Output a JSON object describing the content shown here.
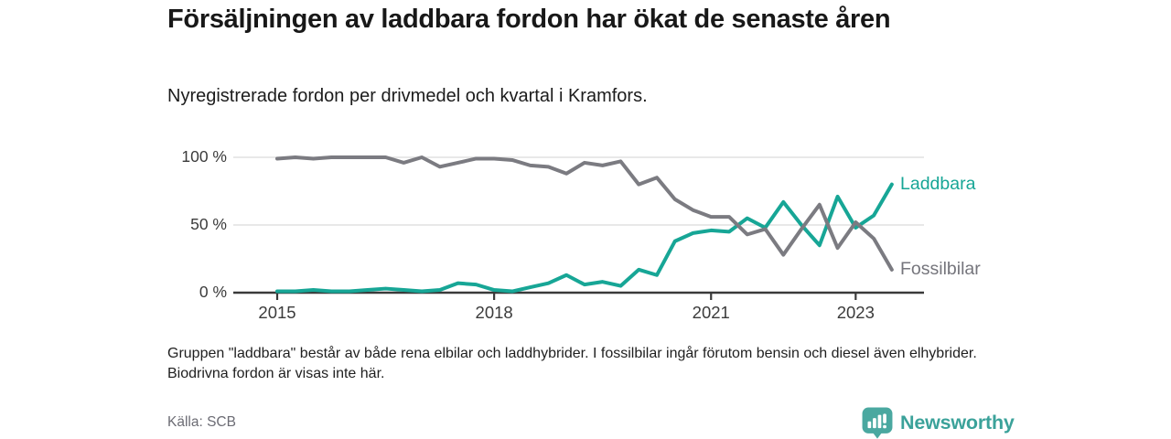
{
  "header": {
    "title": "Försäljningen av laddbara fordon har ökat de senaste åren",
    "subtitle": "Nyregistrerade fordon per drivmedel och kvartal i Kramfors."
  },
  "chart_data": {
    "type": "line",
    "title": "Försäljningen av laddbara fordon har ökat de senaste åren",
    "subtitle": "Nyregistrerade fordon per drivmedel och kvartal i Kramfors.",
    "unit": "%",
    "grid": "horizontal",
    "legend_position": "end-of-line labels at right",
    "ylim": [
      0,
      105
    ],
    "x": [
      "2015 Q1",
      "2015 Q2",
      "2015 Q3",
      "2015 Q4",
      "2016 Q1",
      "2016 Q2",
      "2016 Q3",
      "2016 Q4",
      "2017 Q1",
      "2017 Q2",
      "2017 Q3",
      "2017 Q4",
      "2018 Q1",
      "2018 Q2",
      "2018 Q3",
      "2018 Q4",
      "2019 Q1",
      "2019 Q2",
      "2019 Q3",
      "2019 Q4",
      "2020 Q1",
      "2020 Q2",
      "2020 Q3",
      "2020 Q4",
      "2021 Q1",
      "2021 Q2",
      "2021 Q3",
      "2021 Q4",
      "2022 Q1",
      "2022 Q2",
      "2022 Q3",
      "2022 Q4",
      "2023 Q1",
      "2023 Q2",
      "2023 Q3"
    ],
    "series": [
      {
        "name": "Laddbara",
        "color": "#17a696",
        "label_color": "#17a696",
        "values": [
          1,
          1,
          2,
          1,
          1,
          2,
          3,
          2,
          1,
          2,
          7,
          6,
          2,
          1,
          4,
          7,
          13,
          6,
          8,
          5,
          17,
          13,
          38,
          44,
          46,
          45,
          55,
          48,
          67,
          50,
          35,
          71,
          48,
          57,
          80
        ]
      },
      {
        "name": "Fossilbilar",
        "color": "#7b7b81",
        "label_color": "#75757c",
        "values": [
          99,
          100,
          99,
          100,
          100,
          100,
          100,
          96,
          100,
          93,
          96,
          99,
          99,
          98,
          94,
          93,
          88,
          96,
          94,
          97,
          80,
          85,
          69,
          61,
          56,
          56,
          43,
          47,
          28,
          47,
          65,
          33,
          52,
          40,
          17
        ]
      }
    ],
    "y_axis": {
      "ticks": [
        {
          "label": "100 %",
          "value": 100
        },
        {
          "label": "50 %",
          "value": 50
        },
        {
          "label": "0 %",
          "value": 0
        }
      ]
    },
    "x_axis": {
      "ticks": [
        {
          "label": "2015",
          "index": 0
        },
        {
          "label": "2018",
          "index": 12
        },
        {
          "label": "2021",
          "index": 24
        },
        {
          "label": "2023",
          "index": 32
        }
      ]
    }
  },
  "footnote": "Gruppen \"laddbara\" består av både rena elbilar och laddhybrider. I fossilbilar ingår förutom bensin och diesel även elhybrider. Biodrivna fordon är visas inte här.",
  "source": "Källa: SCB",
  "brand": {
    "name": "Newsworthy",
    "color": "#3ba29a"
  },
  "colors": {
    "gridline": "#e0e0e0",
    "axis": "#3a3a3a",
    "accent_teal": "#17a696",
    "line_gray": "#7b7b81"
  }
}
